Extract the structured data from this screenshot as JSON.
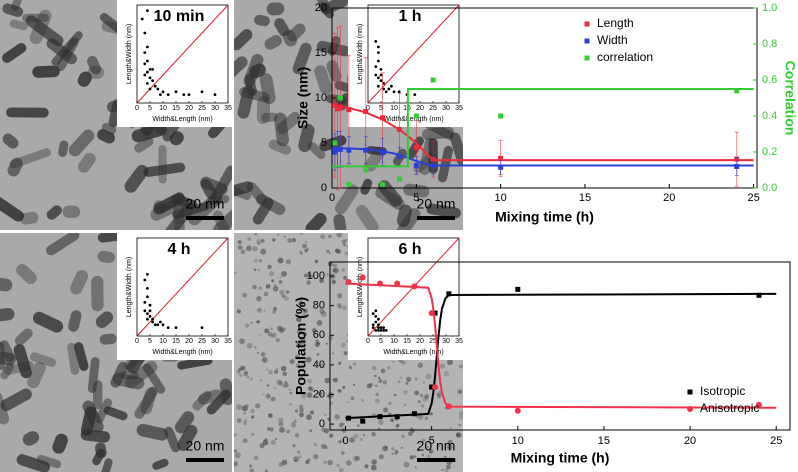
{
  "chart_data": [
    {
      "type": "scatter",
      "title": "10 min",
      "scale_bar": "20 nm",
      "xlabel": "Width&Length (nm)",
      "ylabel": "Length&Width (nm)",
      "xlim": [
        0,
        35
      ],
      "xticks": [
        0,
        5,
        10,
        15,
        20,
        25,
        30,
        35
      ],
      "ylim": [
        0,
        35
      ],
      "color": "#000000",
      "x": [
        3,
        4,
        4,
        5,
        3,
        6,
        4,
        5,
        8,
        10,
        15,
        20,
        25,
        30,
        4,
        2,
        12,
        7,
        3,
        6,
        5,
        9,
        18,
        3,
        4
      ],
      "values": [
        25,
        20,
        15,
        12,
        10,
        8,
        7,
        5,
        5,
        4,
        4,
        3,
        4,
        3,
        33,
        30,
        3,
        6,
        18,
        12,
        9,
        3,
        3,
        14,
        11
      ]
    },
    {
      "type": "scatter",
      "title": "1 h",
      "scale_bar": "20 nm",
      "xlabel": "Width&Length (nm)",
      "ylabel": "Length&Width (nm)",
      "xlim": [
        0,
        35
      ],
      "xticks": [
        0,
        5,
        10,
        15,
        20,
        25,
        30,
        35
      ],
      "ylim": [
        0,
        35
      ],
      "color": "#000000",
      "x": [
        3,
        4,
        4,
        5,
        3,
        5,
        4,
        6,
        8,
        10,
        12,
        15,
        18,
        4,
        3,
        5,
        7,
        9,
        6,
        4
      ],
      "values": [
        22,
        18,
        15,
        12,
        10,
        8,
        6,
        5,
        5,
        4,
        4,
        3,
        3,
        20,
        13,
        10,
        4,
        6,
        7,
        9
      ]
    },
    {
      "type": "scatter",
      "title": "4 h",
      "scale_bar": "20 nm",
      "xlabel": "Width&Length (nm)",
      "ylabel": "Length&Width (nm)",
      "xlim": [
        0,
        35
      ],
      "xticks": [
        0,
        5,
        10,
        15,
        20,
        25,
        30,
        35
      ],
      "ylim": [
        0,
        35
      ],
      "color": "#000000",
      "x": [
        3,
        4,
        4,
        5,
        3,
        5,
        4,
        6,
        8,
        10,
        12,
        15,
        25,
        4,
        3,
        5,
        7,
        9,
        6,
        4
      ],
      "values": [
        20,
        17,
        14,
        11,
        9,
        7,
        6,
        5,
        4,
        4,
        3,
        3,
        3,
        22,
        12,
        9,
        4,
        5,
        6,
        8
      ]
    },
    {
      "type": "scatter",
      "title": "6 h",
      "scale_bar": "20 nm",
      "xlabel": "Width&Length (nm)",
      "ylabel": "Length&Width (nm)",
      "xlim": [
        0,
        35
      ],
      "xticks": [
        0,
        5,
        10,
        15,
        20,
        25,
        30,
        35
      ],
      "ylim": [
        0,
        35
      ],
      "color": "#000000",
      "x": [
        2,
        3,
        3,
        4,
        2,
        4,
        5,
        6,
        3,
        4,
        5,
        2,
        3,
        4,
        6,
        7
      ],
      "values": [
        8,
        7,
        5,
        6,
        4,
        4,
        3,
        3,
        2,
        2,
        2,
        3,
        9,
        3,
        2,
        2
      ]
    },
    {
      "type": "line",
      "xlabel": "Mixing time (h)",
      "ylabel": "Size (nm)",
      "y2label": "Correlation",
      "legend": "upper right",
      "xlim": [
        0,
        25.2
      ],
      "xticks": [
        0,
        5,
        10,
        15,
        20,
        25
      ],
      "ylim": [
        0,
        20
      ],
      "yticks": [
        0,
        5,
        10,
        15,
        20
      ],
      "y2lim": [
        0,
        1
      ],
      "y2ticks": [
        {
          "value": 0,
          "label": "0.0"
        },
        0.2,
        0.4,
        0.6,
        0.8,
        {
          "value": 1,
          "label": "1.0"
        }
      ],
      "series": [
        {
          "name": "Length",
          "color": "#ee2a3c",
          "x": [
            0.17,
            0.33,
            0.5,
            1,
            2,
            3,
            4,
            5,
            6,
            10,
            24
          ],
          "values": [
            9.2,
            8.8,
            9,
            8.7,
            8.5,
            7.8,
            6.5,
            4.5,
            3.2,
            3.3,
            3.2
          ],
          "errors": [
            8,
            9,
            9,
            6,
            6,
            5,
            4,
            3,
            2,
            2,
            3
          ],
          "fit": {
            "x": [
              0,
              1,
              2,
              3,
              4,
              5,
              5.5,
              6,
              25
            ],
            "values": [
              9.2,
              8.9,
              8.4,
              7.6,
              6.5,
              5,
              4,
              3.1,
              3.1
            ]
          }
        },
        {
          "name": "Width",
          "color": "#2a3fd6",
          "x": [
            0.17,
            0.33,
            0.5,
            1,
            2,
            3,
            4,
            5,
            6,
            10,
            24
          ],
          "values": [
            4,
            4.3,
            4.3,
            4.2,
            4.2,
            4,
            3.5,
            2.5,
            2.5,
            2.3,
            2.4
          ],
          "errors": [
            2,
            2,
            2,
            1.5,
            1.5,
            1.5,
            1,
            1,
            1,
            0.8,
            1
          ],
          "fit": {
            "x": [
              0,
              1,
              2,
              3,
              4,
              5,
              5.5,
              6,
              25
            ],
            "values": [
              4.4,
              4.4,
              4.3,
              4.1,
              3.7,
              3,
              2.7,
              2.5,
              2.5
            ]
          }
        },
        {
          "name": "correlation",
          "color": "#33cc33",
          "axis": "y2",
          "x": [
            0.17,
            0.5,
            1,
            2,
            3,
            4,
            5,
            6,
            10,
            24
          ],
          "values": [
            0.25,
            0.5,
            0.02,
            0.1,
            0.02,
            0.05,
            0.4,
            0.6,
            0.4,
            0.54
          ],
          "fit": {
            "x": [
              0,
              4.5,
              4.5,
              25
            ],
            "values": [
              0.12,
              0.12,
              0.55,
              0.55
            ]
          }
        }
      ]
    },
    {
      "type": "line",
      "xlabel": "Mixing time (h)",
      "ylabel": "Population (%)",
      "legend": "lower right",
      "xlim": [
        -0.9,
        25.8
      ],
      "xticks": [
        0,
        5,
        10,
        15,
        20,
        25
      ],
      "ylim": [
        -4,
        109.5
      ],
      "yticks": [
        0,
        20,
        40,
        60,
        80,
        100
      ],
      "series": [
        {
          "name": "Isotropic",
          "color": "#000000",
          "marker": "square",
          "x": [
            0.17,
            1,
            2,
            3,
            4,
            5,
            5.2,
            6,
            10,
            24
          ],
          "values": [
            4,
            2,
            5,
            5,
            7,
            25,
            75,
            88,
            91,
            87
          ],
          "fit": {
            "x": [
              0,
              4.8,
              5,
              5.1,
              5.2,
              5.3,
              5.4,
              5.5,
              5.6,
              5.8,
              6,
              25
            ],
            "values": [
              4,
              6.9,
              14,
              21.5,
              32.5,
              46,
              59.5,
              70.5,
              78,
              84.9,
              87.2,
              88
            ]
          }
        },
        {
          "name": "Anisotropic",
          "color": "#f0334a",
          "marker": "circle",
          "x": [
            0.17,
            1,
            2,
            3,
            4,
            5,
            5.2,
            6,
            10,
            24
          ],
          "values": [
            96,
            99,
            95,
            95,
            93,
            75,
            25,
            12,
            9,
            13
          ],
          "fit": {
            "x": [
              0,
              4.8,
              5,
              5.1,
              5.2,
              5.3,
              5.4,
              5.5,
              5.6,
              5.8,
              6,
              25
            ],
            "values": [
              95,
              92.1,
              85,
              77.5,
              66.5,
              53,
              39.5,
              28.5,
              21,
              14.1,
              11.8,
              11
            ]
          }
        }
      ]
    }
  ]
}
